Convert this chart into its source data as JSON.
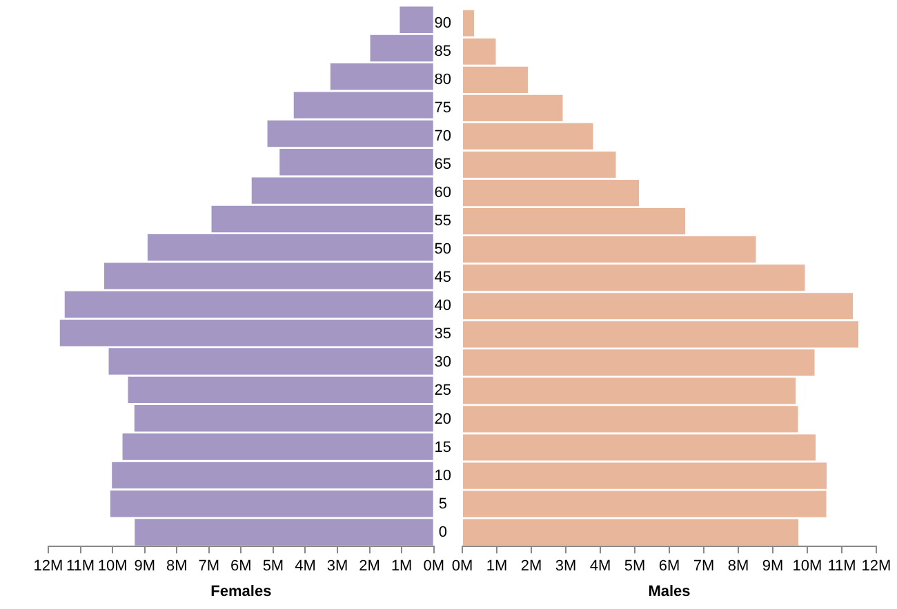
{
  "chart_data": [
    {
      "type": "bar",
      "orientation": "horizontal",
      "xlabel": "Females",
      "categories": [
        "90",
        "85",
        "80",
        "75",
        "70",
        "65",
        "60",
        "55",
        "50",
        "45",
        "40",
        "35",
        "30",
        "25",
        "20",
        "15",
        "10",
        "5",
        "0"
      ],
      "values": [
        1060000,
        1980000,
        3220000,
        4360000,
        5180000,
        4800000,
        5670000,
        6920000,
        8910000,
        10260000,
        11490000,
        11640000,
        10120000,
        9520000,
        9320000,
        9690000,
        10020000,
        10070000,
        9310000
      ],
      "color": "#a597c4",
      "xlim": [
        12000000,
        0
      ],
      "xticks": [
        {
          "value": 12000000,
          "label": "12M"
        },
        {
          "value": 11000000,
          "label": "11M"
        },
        {
          "value": 10000000,
          "label": "10M"
        },
        {
          "value": 9000000,
          "label": "9M"
        },
        {
          "value": 8000000,
          "label": "8M"
        },
        {
          "value": 7000000,
          "label": "7M"
        },
        {
          "value": 6000000,
          "label": "6M"
        },
        {
          "value": 5000000,
          "label": "5M"
        },
        {
          "value": 4000000,
          "label": "4M"
        },
        {
          "value": 3000000,
          "label": "3M"
        },
        {
          "value": 2000000,
          "label": "2M"
        },
        {
          "value": 1000000,
          "label": "1M"
        },
        {
          "value": 0,
          "label": "0M"
        }
      ],
      "tick_labels": "x",
      "grid": false
    },
    {
      "type": "bar",
      "orientation": "horizontal",
      "xlabel": "Males",
      "categories": [
        "90",
        "85",
        "80",
        "75",
        "70",
        "65",
        "60",
        "55",
        "50",
        "45",
        "40",
        "35",
        "30",
        "25",
        "20",
        "15",
        "10",
        "5",
        "0"
      ],
      "values": [
        340000,
        970000,
        1900000,
        2910000,
        3790000,
        4450000,
        5120000,
        6460000,
        8510000,
        9930000,
        11320000,
        11480000,
        10210000,
        9660000,
        9730000,
        10240000,
        10560000,
        10550000,
        9740000
      ],
      "color": "#e7b69b",
      "xlim": [
        0,
        12000000
      ],
      "xticks": [
        {
          "value": 0,
          "label": "0M"
        },
        {
          "value": 1000000,
          "label": "1M"
        },
        {
          "value": 2000000,
          "label": "2M"
        },
        {
          "value": 3000000,
          "label": "3M"
        },
        {
          "value": 4000000,
          "label": "4M"
        },
        {
          "value": 5000000,
          "label": "5M"
        },
        {
          "value": 6000000,
          "label": "6M"
        },
        {
          "value": 7000000,
          "label": "7M"
        },
        {
          "value": 8000000,
          "label": "8M"
        },
        {
          "value": 9000000,
          "label": "9M"
        },
        {
          "value": 10000000,
          "label": "10M"
        },
        {
          "value": 11000000,
          "label": "11M"
        },
        {
          "value": 12000000,
          "label": "12M"
        }
      ],
      "grid": false
    }
  ]
}
